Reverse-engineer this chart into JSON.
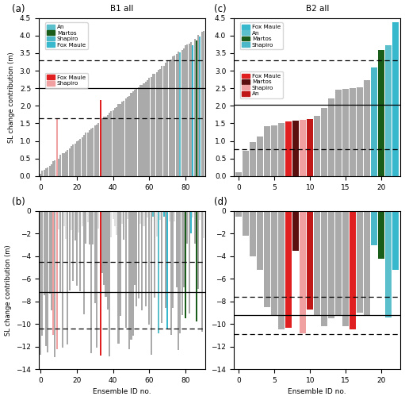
{
  "title_a": "B1 all",
  "title_c": "B2 all",
  "label_a": "(a)",
  "label_b": "(b)",
  "label_c": "(c)",
  "label_d": "(d)",
  "ylabel_lig": "SL change contribution (m)",
  "ylabel_lgm": "SL change contribution (m)",
  "xlabel": "Ensemble ID no.",
  "ylim_lig": [
    0.0,
    4.5
  ],
  "ylim_lgm": [
    -14,
    0
  ],
  "hline_a_solid": 2.5,
  "hline_a_dashed1": 1.65,
  "hline_a_dashed2": 3.3,
  "hline_b_solid": -7.2,
  "hline_b_dashed1": -4.5,
  "hline_b_dashed2": -10.4,
  "hline_c_solid": 2.03,
  "hline_c_dashed1": 0.77,
  "hline_c_dashed2": 3.3,
  "hline_d_solid": -9.2,
  "hline_d_dashed1": -7.6,
  "hline_d_dashed2": -10.9,
  "n_a": 91,
  "n_c": 23,
  "gray": "#aaaaaa",
  "lightgray": "#cccccc",
  "color_an_cyan": "#5cbfcc",
  "color_martos_green": "#1a5c1a",
  "color_shapiro_teal": "#4ab8c8",
  "color_fox_maule_cyan": "#38b8cc",
  "color_fox_maule_red": "#e02020",
  "color_shapiro_pink": "#f0a0a0",
  "color_fox_maule_red2": "#e02020",
  "color_martos_darkred": "#5c0f0f",
  "color_shapiro_pink2": "#f0a0a0",
  "color_an_red": "#c01818",
  "legend_a_upper": [
    {
      "label": "An",
      "color": "#5cbfcc"
    },
    {
      "label": "Martos",
      "color": "#1a5c1a"
    },
    {
      "label": "Shapiro",
      "color": "#4ab8c8"
    },
    {
      "label": "Fox Maule",
      "color": "#38b8cc"
    }
  ],
  "legend_a_lower": [
    {
      "label": "Fox Maule",
      "color": "#e02020"
    },
    {
      "label": "Shapiro",
      "color": "#f0a0a0"
    }
  ],
  "legend_c_upper": [
    {
      "label": "Fox Maule",
      "color": "#38b8cc"
    },
    {
      "label": "An",
      "color": "#5cbfcc"
    },
    {
      "label": "Martos",
      "color": "#1a5c1a"
    },
    {
      "label": "Shapiro",
      "color": "#4ab8c8"
    }
  ],
  "legend_c_lower": [
    {
      "label": "Fox Maule",
      "color": "#e02020"
    },
    {
      "label": "Martos",
      "color": "#5c0f0f"
    },
    {
      "label": "Shapiro",
      "color": "#f0a0a0"
    },
    {
      "label": "An",
      "color": "#c01818"
    }
  ]
}
